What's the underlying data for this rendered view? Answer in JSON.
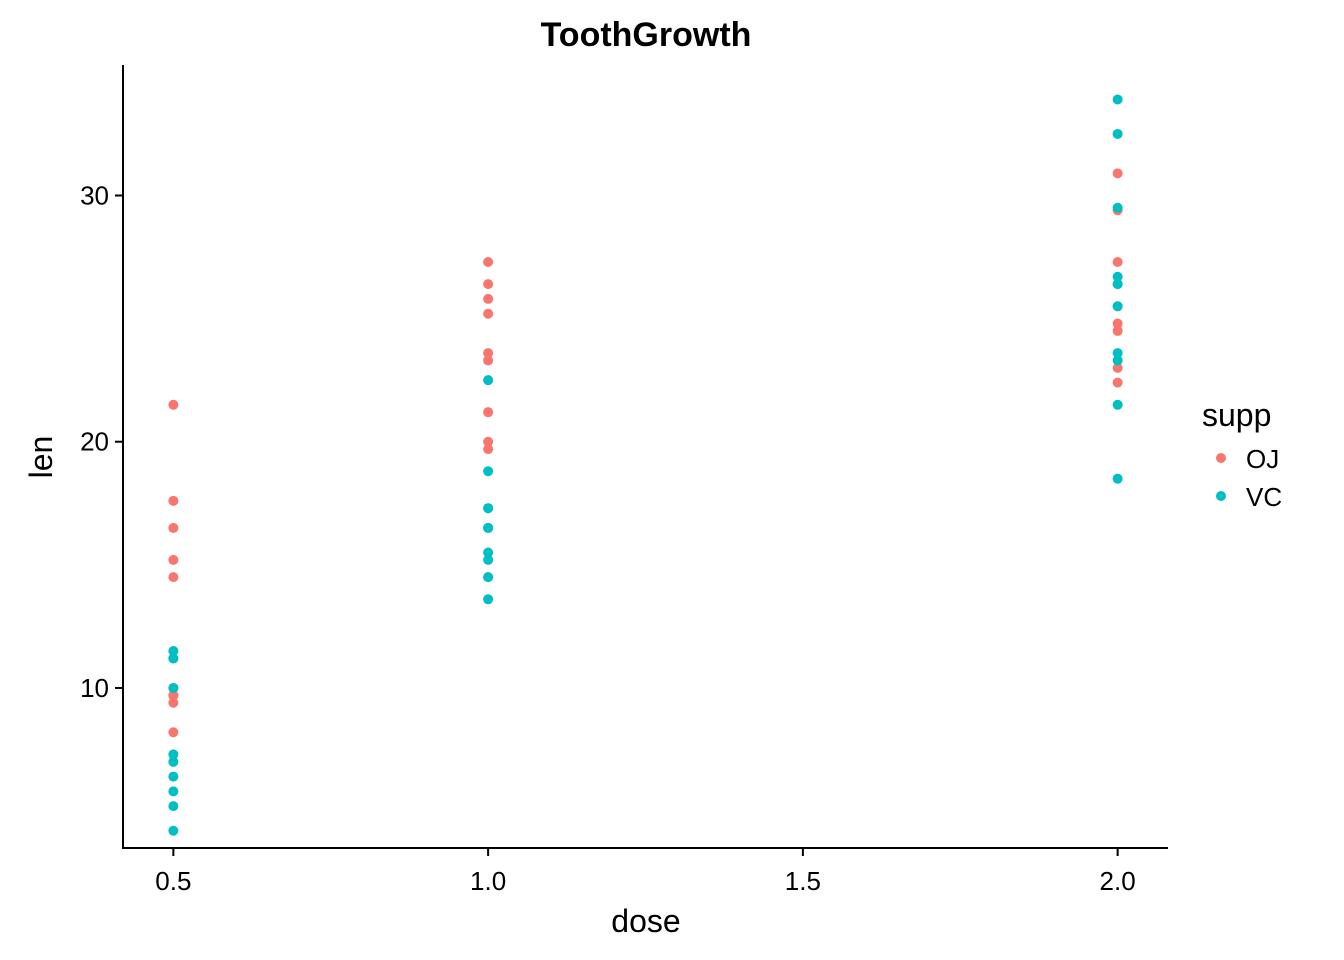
{
  "chart_data": {
    "type": "scatter",
    "title": "ToothGrowth",
    "xlabel": "dose",
    "ylabel": "len",
    "xlim": [
      0.42,
      2.08
    ],
    "ylim": [
      3.5,
      35.3
    ],
    "x_ticks": [
      0.5,
      1.0,
      1.5,
      2.0
    ],
    "x_tick_labels": [
      "0.5",
      "1.0",
      "1.5",
      "2.0"
    ],
    "y_ticks": [
      10,
      20,
      30
    ],
    "y_tick_labels": [
      "10",
      "20",
      "30"
    ],
    "grid": false,
    "legend": {
      "title": "supp",
      "position": "right"
    },
    "series": [
      {
        "name": "OJ",
        "color": "#F8766D",
        "points": [
          [
            0.5,
            15.2
          ],
          [
            0.5,
            21.5
          ],
          [
            0.5,
            17.6
          ],
          [
            0.5,
            9.7
          ],
          [
            0.5,
            14.5
          ],
          [
            0.5,
            10.0
          ],
          [
            0.5,
            8.2
          ],
          [
            0.5,
            9.4
          ],
          [
            0.5,
            16.5
          ],
          [
            0.5,
            9.7
          ],
          [
            1.0,
            19.7
          ],
          [
            1.0,
            23.3
          ],
          [
            1.0,
            23.6
          ],
          [
            1.0,
            26.4
          ],
          [
            1.0,
            20.0
          ],
          [
            1.0,
            25.2
          ],
          [
            1.0,
            25.8
          ],
          [
            1.0,
            21.2
          ],
          [
            1.0,
            14.5
          ],
          [
            1.0,
            27.3
          ],
          [
            2.0,
            25.5
          ],
          [
            2.0,
            26.4
          ],
          [
            2.0,
            22.4
          ],
          [
            2.0,
            24.5
          ],
          [
            2.0,
            24.8
          ],
          [
            2.0,
            30.9
          ],
          [
            2.0,
            26.4
          ],
          [
            2.0,
            27.3
          ],
          [
            2.0,
            29.4
          ],
          [
            2.0,
            23.0
          ]
        ]
      },
      {
        "name": "VC",
        "color": "#00BFC4",
        "points": [
          [
            0.5,
            4.2
          ],
          [
            0.5,
            11.5
          ],
          [
            0.5,
            7.3
          ],
          [
            0.5,
            5.8
          ],
          [
            0.5,
            6.4
          ],
          [
            0.5,
            10.0
          ],
          [
            0.5,
            11.2
          ],
          [
            0.5,
            11.2
          ],
          [
            0.5,
            5.2
          ],
          [
            0.5,
            7.0
          ],
          [
            1.0,
            16.5
          ],
          [
            1.0,
            16.5
          ],
          [
            1.0,
            15.2
          ],
          [
            1.0,
            17.3
          ],
          [
            1.0,
            22.5
          ],
          [
            1.0,
            17.3
          ],
          [
            1.0,
            13.6
          ],
          [
            1.0,
            14.5
          ],
          [
            1.0,
            18.8
          ],
          [
            1.0,
            15.5
          ],
          [
            2.0,
            23.6
          ],
          [
            2.0,
            18.5
          ],
          [
            2.0,
            33.9
          ],
          [
            2.0,
            25.5
          ],
          [
            2.0,
            26.4
          ],
          [
            2.0,
            32.5
          ],
          [
            2.0,
            26.7
          ],
          [
            2.0,
            21.5
          ],
          [
            2.0,
            23.3
          ],
          [
            2.0,
            29.5
          ]
        ]
      }
    ]
  }
}
